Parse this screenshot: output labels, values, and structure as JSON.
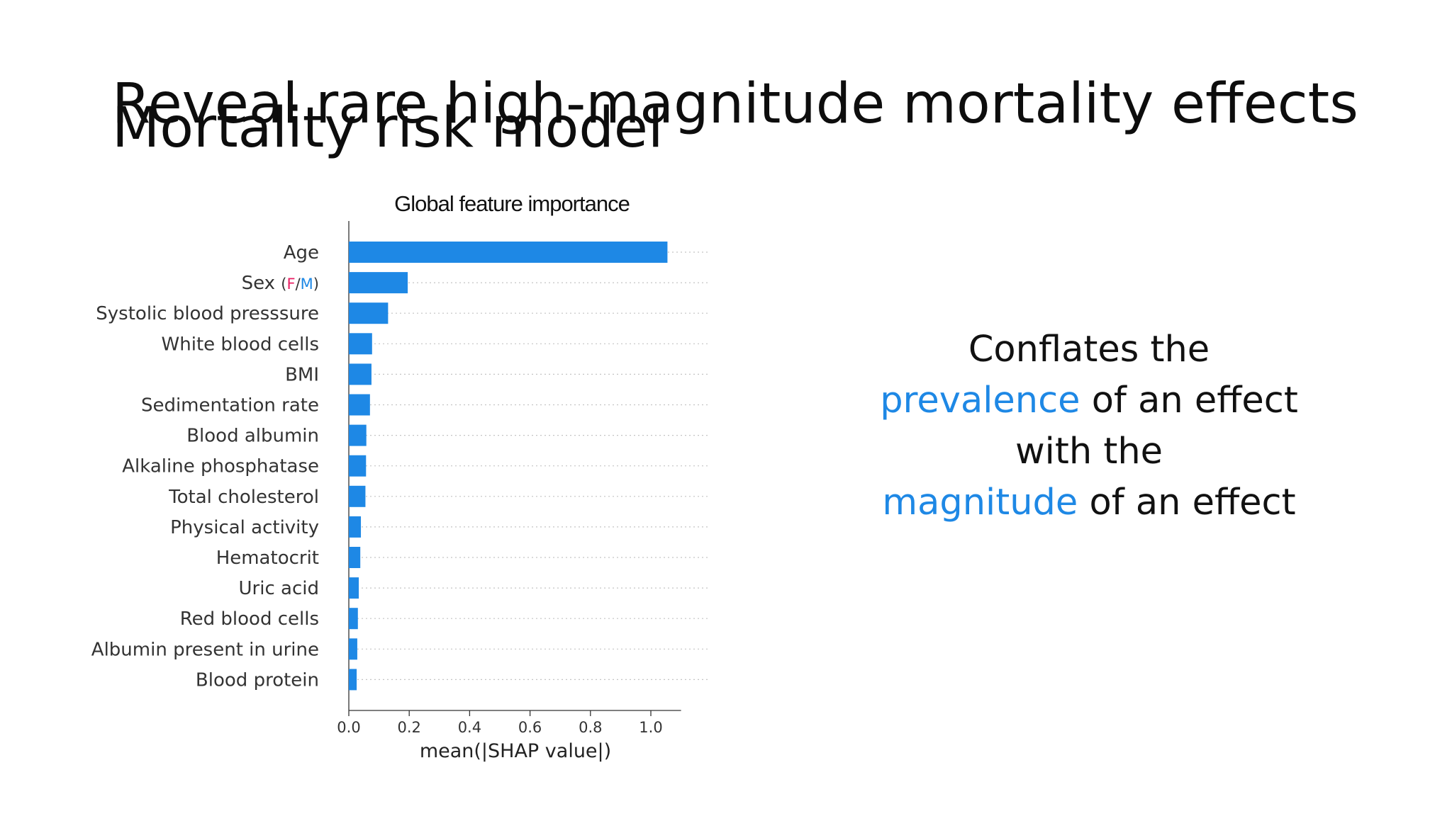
{
  "slide": {
    "title_front": "Reveal rare high-magnitude mortality effects",
    "title_back": "Mortality risk model"
  },
  "callout": {
    "line1": "Conflates the",
    "line2_accent": "prevalence",
    "line2_rest": " of an effect",
    "line3": "with the",
    "line4_accent": "magnitude",
    "line4_rest": " of an effect",
    "accent_color": "#1e88e5"
  },
  "chart_data": {
    "type": "bar",
    "orientation": "horizontal",
    "title": "Global feature importance",
    "xlabel": "mean(|SHAP value|)",
    "ylabel": "",
    "xlim": [
      0,
      1.1
    ],
    "xticks": [
      "0.0",
      "0.2",
      "0.4",
      "0.6",
      "0.8",
      "1.0"
    ],
    "grid": "dotted horizontal guide per bar",
    "bar_color": "#1e88e5",
    "categories": [
      "Age",
      "Sex",
      "Systolic blood presssure",
      "White blood cells",
      "BMI",
      "Sedimentation rate",
      "Blood albumin",
      "Alkaline phosphatase",
      "Total cholesterol",
      "Physical activity",
      "Hematocrit",
      "Uric acid",
      "Red blood cells",
      "Albumin present in urine",
      "Blood protein"
    ],
    "values": [
      1.055,
      0.195,
      0.13,
      0.077,
      0.075,
      0.07,
      0.058,
      0.057,
      0.055,
      0.04,
      0.038,
      0.033,
      0.03,
      0.028,
      0.026
    ],
    "sex_suffix": {
      "open": "(",
      "f": "F",
      "slash": "/",
      "m": "M",
      "close": ")",
      "f_color": "#e91e63",
      "m_color": "#1e88e5"
    }
  }
}
